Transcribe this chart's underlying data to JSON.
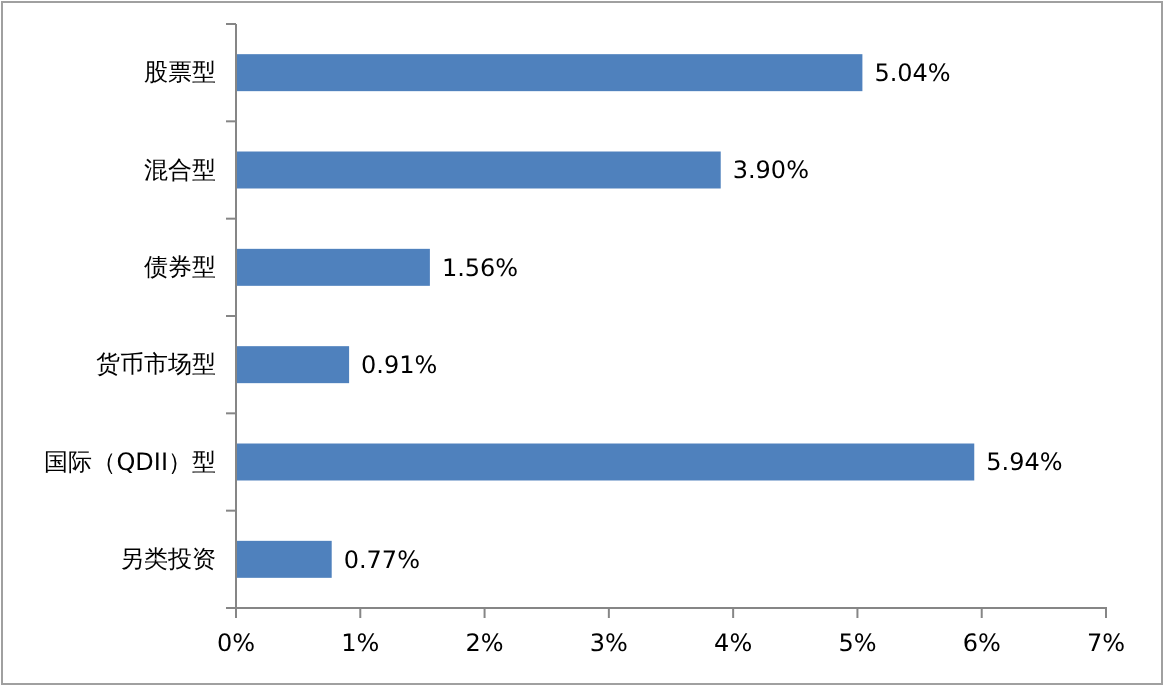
{
  "chart_data": {
    "type": "bar",
    "orientation": "horizontal",
    "categories": [
      "股票型",
      "混合型",
      "债券型",
      "货币市场型",
      "国际（QDII）型",
      "另类投资"
    ],
    "values": [
      5.04,
      3.9,
      1.56,
      0.91,
      5.94,
      0.77
    ],
    "value_labels": [
      "5.04%",
      "3.90%",
      "1.56%",
      "0.91%",
      "5.94%",
      "0.77%"
    ],
    "color": "#4f81bd",
    "xlim": [
      0,
      7
    ],
    "xticks": [
      {
        "value": 0,
        "label": "0%"
      },
      {
        "value": 1,
        "label": "1%"
      },
      {
        "value": 2,
        "label": "2%"
      },
      {
        "value": 3,
        "label": "3%"
      },
      {
        "value": 4,
        "label": "4%"
      },
      {
        "value": 5,
        "label": "5%"
      },
      {
        "value": 6,
        "label": "6%"
      },
      {
        "value": 7,
        "label": "7%"
      }
    ],
    "grid": false
  }
}
